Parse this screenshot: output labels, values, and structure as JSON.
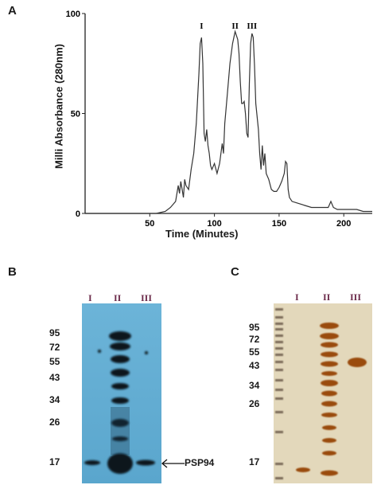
{
  "panelA": {
    "letter": "A",
    "chart_data": {
      "type": "line",
      "xlabel": "Time (Minutes)",
      "ylabel": "Milli Absorbance (280nm)",
      "xlim": [
        0,
        222
      ],
      "ylim": [
        0,
        100
      ],
      "xticks": [
        "50",
        "100",
        "150",
        "200"
      ],
      "yticks": [
        "0",
        "50",
        "100"
      ],
      "peak_labels": [
        {
          "label": "I",
          "x": 90
        },
        {
          "label": "II",
          "x": 116
        },
        {
          "label": "III",
          "x": 129
        }
      ],
      "series": [
        {
          "x": [
            0,
            55,
            62,
            66,
            70,
            72,
            73,
            74,
            75,
            76,
            77,
            78,
            80,
            82,
            84,
            86,
            88,
            89,
            90,
            91,
            92,
            93,
            94,
            95,
            96,
            97,
            98,
            100,
            102,
            104,
            106,
            107,
            108,
            110,
            112,
            114,
            116,
            118,
            119,
            120,
            121,
            122,
            123,
            124,
            125,
            126,
            127,
            128,
            129,
            130,
            131,
            132,
            134,
            135,
            136,
            137,
            138,
            139,
            140,
            142,
            144,
            146,
            148,
            150,
            152,
            154,
            155,
            156,
            157,
            158,
            160,
            165,
            170,
            175,
            180,
            185,
            188,
            190,
            192,
            195,
            200,
            205,
            210,
            215,
            222
          ],
          "y": [
            0,
            0,
            1,
            3,
            6,
            14,
            10,
            16,
            12,
            8,
            17,
            14,
            12,
            22,
            30,
            45,
            70,
            85,
            88,
            75,
            40,
            36,
            42,
            34,
            30,
            24,
            22,
            25,
            20,
            25,
            35,
            30,
            45,
            60,
            75,
            85,
            91,
            87,
            80,
            66,
            55,
            55,
            56,
            50,
            40,
            38,
            65,
            85,
            90,
            88,
            74,
            55,
            42,
            30,
            22,
            34,
            24,
            30,
            20,
            17,
            12,
            11,
            11,
            13,
            16,
            20,
            26,
            25,
            12,
            8,
            6,
            5,
            4,
            3,
            3,
            3,
            3,
            6,
            3,
            2,
            2,
            2,
            2,
            1,
            1
          ]
        }
      ]
    }
  },
  "panelB": {
    "letter": "B",
    "lanes": [
      "I",
      "II",
      "III"
    ],
    "markers": [
      "95",
      "72",
      "55",
      "43",
      "34",
      "26",
      "17"
    ],
    "protein_label": "PSP94",
    "colors": {
      "background": "#66afd3",
      "band": "#07151f"
    }
  },
  "panelC": {
    "letter": "C",
    "lanes": [
      "I",
      "II",
      "III"
    ],
    "markers": [
      "95",
      "72",
      "55",
      "43",
      "34",
      "26",
      "17"
    ],
    "colors": {
      "background": "#e3d8bb",
      "band": "#9a4b10",
      "ladder": "#7a6a58"
    }
  }
}
